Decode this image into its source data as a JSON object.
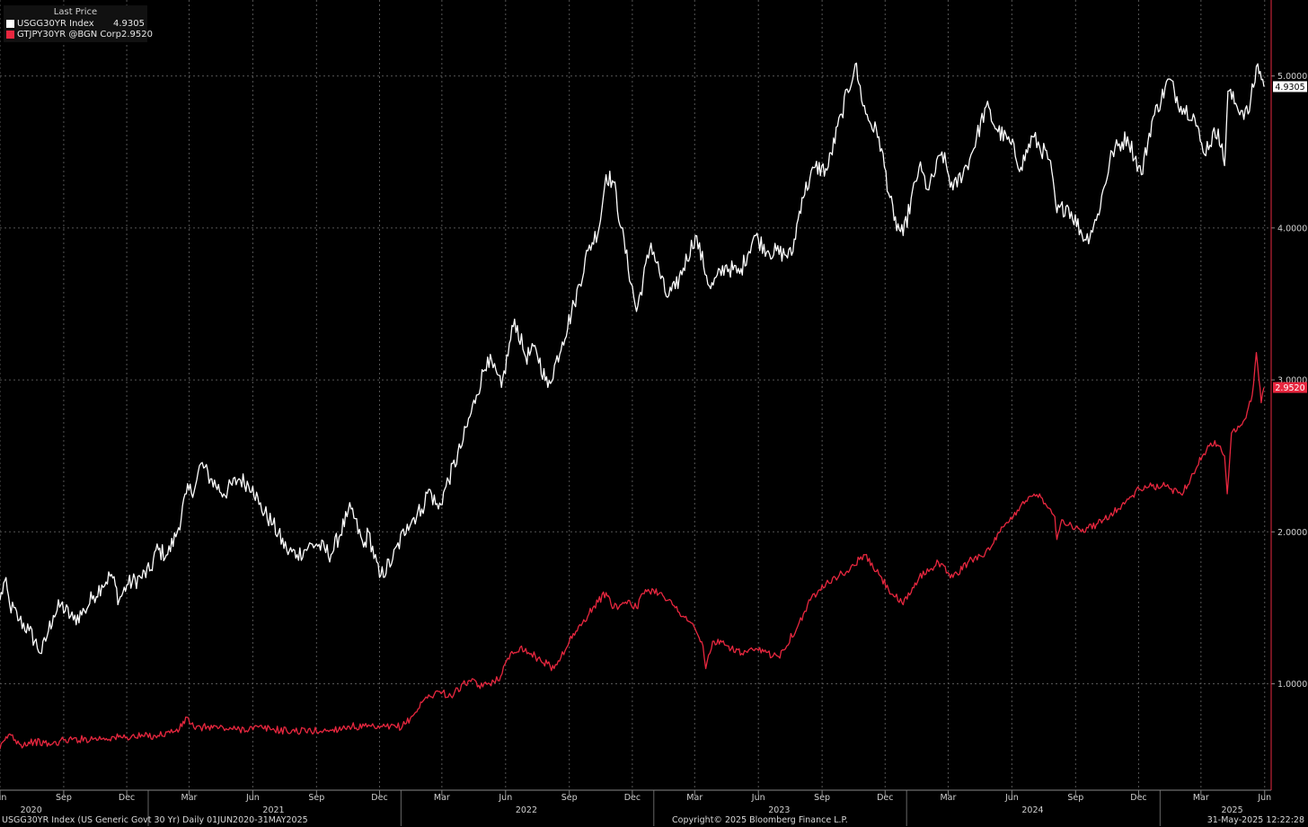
{
  "legend": {
    "title": "Last Price",
    "items": [
      {
        "name": "USGG30YR Index",
        "value": "4.9305",
        "color": "#ffffff"
      },
      {
        "name": "GTJPY30YR @BGN Corp",
        "value": "2.9520",
        "color": "#e8273f"
      }
    ]
  },
  "footer": {
    "left": "USGG30YR Index (US Generic Govt 30 Yr)  Daily 01JUN2020-31MAY2025",
    "center": "Copyright© 2025 Bloomberg Finance L.P.",
    "right": "31-May-2025 12:22:28"
  },
  "chart_data": {
    "type": "line",
    "x_range": [
      "2020-06-01",
      "2025-05-31"
    ],
    "ylim": [
      0.3,
      5.5
    ],
    "y_ticks": [
      "1.0000",
      "2.0000",
      "3.0000",
      "4.0000",
      "5.0000"
    ],
    "grid": true,
    "legend_position": "top-left",
    "x_month_ticks": [
      {
        "date": "2020-06-01",
        "label": "Jun"
      },
      {
        "date": "2020-09-01",
        "label": "Sep"
      },
      {
        "date": "2020-12-01",
        "label": "Dec"
      },
      {
        "date": "2021-03-01",
        "label": "Mar"
      },
      {
        "date": "2021-06-01",
        "label": "Jun"
      },
      {
        "date": "2021-09-01",
        "label": "Sep"
      },
      {
        "date": "2021-12-01",
        "label": "Dec"
      },
      {
        "date": "2022-03-01",
        "label": "Mar"
      },
      {
        "date": "2022-06-01",
        "label": "Jun"
      },
      {
        "date": "2022-09-01",
        "label": "Sep"
      },
      {
        "date": "2022-12-01",
        "label": "Dec"
      },
      {
        "date": "2023-03-01",
        "label": "Mar"
      },
      {
        "date": "2023-06-01",
        "label": "Jun"
      },
      {
        "date": "2023-09-01",
        "label": "Sep"
      },
      {
        "date": "2023-12-01",
        "label": "Dec"
      },
      {
        "date": "2024-03-01",
        "label": "Mar"
      },
      {
        "date": "2024-06-01",
        "label": "Jun"
      },
      {
        "date": "2024-09-01",
        "label": "Sep"
      },
      {
        "date": "2024-12-01",
        "label": "Dec"
      },
      {
        "date": "2025-03-01",
        "label": "Mar"
      },
      {
        "date": "2025-06-01",
        "label": "Jun"
      }
    ],
    "x_year_labels": [
      {
        "date": "2020-07-16",
        "label": "2020"
      },
      {
        "date": "2021-07-01",
        "label": "2021"
      },
      {
        "date": "2022-07-01",
        "label": "2022"
      },
      {
        "date": "2023-07-01",
        "label": "2023"
      },
      {
        "date": "2024-07-01",
        "label": "2024"
      },
      {
        "date": "2025-04-15",
        "label": "2025"
      }
    ],
    "last_value_tags": [
      {
        "series": 0,
        "label": "4.9305"
      },
      {
        "series": 1,
        "label": "2.9520"
      }
    ],
    "series": [
      {
        "name": "USGG30YR Index",
        "color": "#ffffff",
        "points": [
          [
            "2020-06-01",
            1.55
          ],
          [
            "2020-06-08",
            1.68
          ],
          [
            "2020-06-15",
            1.52
          ],
          [
            "2020-06-29",
            1.42
          ],
          [
            "2020-07-13",
            1.35
          ],
          [
            "2020-07-31",
            1.2
          ],
          [
            "2020-08-10",
            1.35
          ],
          [
            "2020-08-17",
            1.45
          ],
          [
            "2020-08-28",
            1.52
          ],
          [
            "2020-09-15",
            1.42
          ],
          [
            "2020-10-01",
            1.48
          ],
          [
            "2020-10-14",
            1.58
          ],
          [
            "2020-10-26",
            1.65
          ],
          [
            "2020-11-09",
            1.72
          ],
          [
            "2020-11-20",
            1.55
          ],
          [
            "2020-12-01",
            1.65
          ],
          [
            "2020-12-21",
            1.7
          ],
          [
            "2021-01-05",
            1.75
          ],
          [
            "2021-01-12",
            1.88
          ],
          [
            "2021-01-29",
            1.85
          ],
          [
            "2021-02-12",
            2.0
          ],
          [
            "2021-02-25",
            2.25
          ],
          [
            "2021-03-10",
            2.3
          ],
          [
            "2021-03-18",
            2.45
          ],
          [
            "2021-04-01",
            2.35
          ],
          [
            "2021-04-20",
            2.25
          ],
          [
            "2021-05-12",
            2.35
          ],
          [
            "2021-06-01",
            2.3
          ],
          [
            "2021-06-10",
            2.18
          ],
          [
            "2021-06-30",
            2.05
          ],
          [
            "2021-07-20",
            1.88
          ],
          [
            "2021-08-04",
            1.85
          ],
          [
            "2021-08-20",
            1.9
          ],
          [
            "2021-09-01",
            1.92
          ],
          [
            "2021-09-22",
            1.85
          ],
          [
            "2021-10-15",
            2.1
          ],
          [
            "2021-10-21",
            2.15
          ],
          [
            "2021-11-08",
            1.9
          ],
          [
            "2021-11-15",
            2.0
          ],
          [
            "2021-12-01",
            1.7
          ],
          [
            "2021-12-20",
            1.82
          ],
          [
            "2022-01-10",
            2.05
          ],
          [
            "2022-01-31",
            2.15
          ],
          [
            "2022-02-10",
            2.28
          ],
          [
            "2022-02-24",
            2.15
          ],
          [
            "2022-03-07",
            2.3
          ],
          [
            "2022-03-28",
            2.55
          ],
          [
            "2022-04-20",
            2.9
          ],
          [
            "2022-05-06",
            3.15
          ],
          [
            "2022-05-26",
            2.95
          ],
          [
            "2022-06-14",
            3.4
          ],
          [
            "2022-06-30",
            3.15
          ],
          [
            "2022-07-15",
            3.2
          ],
          [
            "2022-08-01",
            2.95
          ],
          [
            "2022-08-22",
            3.25
          ],
          [
            "2022-09-08",
            3.5
          ],
          [
            "2022-09-28",
            3.85
          ],
          [
            "2022-10-14",
            4.0
          ],
          [
            "2022-10-24",
            4.35
          ],
          [
            "2022-11-04",
            4.3
          ],
          [
            "2022-11-15",
            4.0
          ],
          [
            "2022-12-07",
            3.45
          ],
          [
            "2022-12-28",
            3.9
          ],
          [
            "2023-01-19",
            3.55
          ],
          [
            "2023-02-01",
            3.6
          ],
          [
            "2023-03-02",
            3.95
          ],
          [
            "2023-03-24",
            3.6
          ],
          [
            "2023-04-14",
            3.75
          ],
          [
            "2023-05-05",
            3.7
          ],
          [
            "2023-05-26",
            3.95
          ],
          [
            "2023-06-15",
            3.85
          ],
          [
            "2023-07-19",
            3.82
          ],
          [
            "2023-08-03",
            4.2
          ],
          [
            "2023-08-22",
            4.4
          ],
          [
            "2023-09-08",
            4.38
          ],
          [
            "2023-09-29",
            4.75
          ],
          [
            "2023-10-19",
            5.08
          ],
          [
            "2023-10-24",
            4.95
          ],
          [
            "2023-11-03",
            4.75
          ],
          [
            "2023-11-22",
            4.6
          ],
          [
            "2023-12-14",
            4.05
          ],
          [
            "2023-12-27",
            3.95
          ],
          [
            "2024-01-19",
            4.4
          ],
          [
            "2024-02-02",
            4.25
          ],
          [
            "2024-02-21",
            4.5
          ],
          [
            "2024-03-08",
            4.25
          ],
          [
            "2024-04-01",
            4.45
          ],
          [
            "2024-04-25",
            4.8
          ],
          [
            "2024-05-10",
            4.65
          ],
          [
            "2024-05-31",
            4.55
          ],
          [
            "2024-06-14",
            4.4
          ],
          [
            "2024-07-01",
            4.6
          ],
          [
            "2024-07-25",
            4.45
          ],
          [
            "2024-08-05",
            4.1
          ],
          [
            "2024-08-20",
            4.15
          ],
          [
            "2024-09-16",
            3.92
          ],
          [
            "2024-10-01",
            4.05
          ],
          [
            "2024-10-24",
            4.5
          ],
          [
            "2024-11-15",
            4.6
          ],
          [
            "2024-12-05",
            4.35
          ],
          [
            "2024-12-20",
            4.7
          ],
          [
            "2025-01-14",
            4.98
          ],
          [
            "2025-01-31",
            4.8
          ],
          [
            "2025-02-18",
            4.75
          ],
          [
            "2025-03-04",
            4.5
          ],
          [
            "2025-03-26",
            4.65
          ],
          [
            "2025-04-04",
            4.41
          ],
          [
            "2025-04-09",
            4.9
          ],
          [
            "2025-04-22",
            4.8
          ],
          [
            "2025-05-08",
            4.75
          ],
          [
            "2025-05-22",
            5.08
          ],
          [
            "2025-05-31",
            4.93
          ]
        ]
      },
      {
        "name": "GTJPY30YR @BGN Corp",
        "color": "#e8273f",
        "points": [
          [
            "2020-06-01",
            0.57
          ],
          [
            "2020-06-08",
            0.63
          ],
          [
            "2020-06-15",
            0.67
          ],
          [
            "2020-07-01",
            0.6
          ],
          [
            "2020-07-20",
            0.62
          ],
          [
            "2020-08-14",
            0.6
          ],
          [
            "2020-09-01",
            0.63
          ],
          [
            "2020-10-15",
            0.64
          ],
          [
            "2020-12-01",
            0.65
          ],
          [
            "2021-01-15",
            0.66
          ],
          [
            "2021-02-15",
            0.7
          ],
          [
            "2021-02-26",
            0.78
          ],
          [
            "2021-03-10",
            0.7
          ],
          [
            "2021-03-29",
            0.72
          ],
          [
            "2021-05-03",
            0.7
          ],
          [
            "2021-06-15",
            0.71
          ],
          [
            "2021-07-20",
            0.69
          ],
          [
            "2021-09-15",
            0.69
          ],
          [
            "2021-10-18",
            0.72
          ],
          [
            "2021-12-01",
            0.71
          ],
          [
            "2022-01-03",
            0.72
          ],
          [
            "2022-01-20",
            0.8
          ],
          [
            "2022-02-04",
            0.9
          ],
          [
            "2022-02-24",
            0.95
          ],
          [
            "2022-03-14",
            0.92
          ],
          [
            "2022-04-08",
            1.02
          ],
          [
            "2022-04-29",
            0.98
          ],
          [
            "2022-05-25",
            1.05
          ],
          [
            "2022-06-08",
            1.2
          ],
          [
            "2022-06-22",
            1.24
          ],
          [
            "2022-07-14",
            1.18
          ],
          [
            "2022-08-10",
            1.1
          ],
          [
            "2022-09-01",
            1.28
          ],
          [
            "2022-09-20",
            1.4
          ],
          [
            "2022-10-05",
            1.5
          ],
          [
            "2022-10-24",
            1.6
          ],
          [
            "2022-11-04",
            1.5
          ],
          [
            "2022-11-25",
            1.55
          ],
          [
            "2022-12-07",
            1.5
          ],
          [
            "2022-12-20",
            1.62
          ],
          [
            "2023-01-12",
            1.6
          ],
          [
            "2023-02-01",
            1.5
          ],
          [
            "2023-02-24",
            1.4
          ],
          [
            "2023-03-13",
            1.25
          ],
          [
            "2023-03-17",
            1.1
          ],
          [
            "2023-03-27",
            1.28
          ],
          [
            "2023-04-17",
            1.25
          ],
          [
            "2023-05-08",
            1.2
          ],
          [
            "2023-06-01",
            1.22
          ],
          [
            "2023-06-30",
            1.18
          ],
          [
            "2023-07-28",
            1.38
          ],
          [
            "2023-08-15",
            1.55
          ],
          [
            "2023-09-01",
            1.65
          ],
          [
            "2023-09-20",
            1.7
          ],
          [
            "2023-10-11",
            1.75
          ],
          [
            "2023-10-31",
            1.85
          ],
          [
            "2023-11-22",
            1.72
          ],
          [
            "2023-12-06",
            1.62
          ],
          [
            "2023-12-27",
            1.52
          ],
          [
            "2024-01-19",
            1.7
          ],
          [
            "2024-02-16",
            1.8
          ],
          [
            "2024-03-08",
            1.7
          ],
          [
            "2024-04-04",
            1.82
          ],
          [
            "2024-04-30",
            1.88
          ],
          [
            "2024-05-15",
            2.0
          ],
          [
            "2024-06-03",
            2.1
          ],
          [
            "2024-06-17",
            2.2
          ],
          [
            "2024-07-11",
            2.25
          ],
          [
            "2024-08-02",
            2.1
          ],
          [
            "2024-08-05",
            1.95
          ],
          [
            "2024-08-12",
            2.08
          ],
          [
            "2024-09-09",
            2.0
          ],
          [
            "2024-10-01",
            2.05
          ],
          [
            "2024-11-01",
            2.15
          ],
          [
            "2024-12-02",
            2.28
          ],
          [
            "2024-12-20",
            2.3
          ],
          [
            "2025-01-10",
            2.3
          ],
          [
            "2025-01-31",
            2.25
          ],
          [
            "2025-02-14",
            2.35
          ],
          [
            "2025-03-03",
            2.5
          ],
          [
            "2025-03-21",
            2.6
          ],
          [
            "2025-04-04",
            2.5
          ],
          [
            "2025-04-08",
            2.25
          ],
          [
            "2025-04-14",
            2.65
          ],
          [
            "2025-05-05",
            2.75
          ],
          [
            "2025-05-14",
            2.9
          ],
          [
            "2025-05-20",
            3.18
          ],
          [
            "2025-05-27",
            2.85
          ],
          [
            "2025-05-31",
            2.95
          ]
        ]
      }
    ]
  }
}
